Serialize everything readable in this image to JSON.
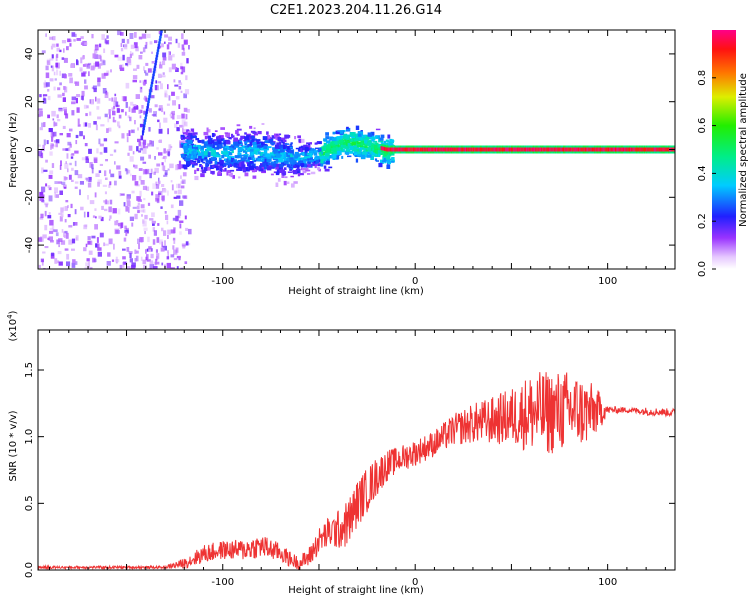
{
  "figure_title": "C2E1.2023.204.11.26.G14",
  "chart_data": [
    {
      "type": "heatmap",
      "xlabel": "Height of straight line (km)",
      "ylabel": "Frequency (Hz)",
      "xlim": [
        -196,
        135
      ],
      "ylim": [
        -50,
        50
      ],
      "xticks": [
        -100,
        0,
        100
      ],
      "yticks": [
        -40,
        -20,
        0,
        20,
        40
      ],
      "grid": false,
      "colorbar": {
        "label": "Normalized spectral amplitude",
        "range": [
          0.0,
          1.0
        ],
        "ticks": [
          0.0,
          0.2,
          0.4,
          0.6,
          0.8
        ]
      },
      "ridge": {
        "x": [
          -120,
          -110,
          -100,
          -90,
          -80,
          -70,
          -60,
          -50,
          -40,
          -35,
          -30,
          -25,
          -20,
          -15,
          0,
          50,
          100,
          135
        ],
        "y": [
          0,
          0,
          -1,
          0,
          -1,
          -2,
          -3,
          -1,
          3,
          4,
          3,
          2,
          1,
          0,
          0,
          0,
          0,
          0
        ]
      }
    },
    {
      "type": "line",
      "xlabel": "Height of straight line (km)",
      "ylabel": "SNR (10 * v/v)",
      "y_multiplier": "(x10^4)",
      "xlim": [
        -196,
        135
      ],
      "ylim": [
        0,
        1.8
      ],
      "xticks": [
        -100,
        0,
        100
      ],
      "yticks": [
        0.0,
        0.5,
        1.0,
        1.5
      ],
      "grid": false,
      "series": [
        {
          "color": "#ee3333",
          "x": [
            -196,
            -130,
            -120,
            -110,
            -100,
            -90,
            -80,
            -70,
            -65,
            -60,
            -55,
            -50,
            -45,
            -40,
            -35,
            -30,
            -25,
            -20,
            -15,
            -10,
            -5,
            0,
            10,
            20,
            30,
            40,
            50,
            60,
            70,
            80,
            90,
            97,
            100,
            110,
            120,
            135
          ],
          "y": [
            0.02,
            0.02,
            0.05,
            0.12,
            0.15,
            0.15,
            0.18,
            0.13,
            0.08,
            0.05,
            0.1,
            0.22,
            0.28,
            0.3,
            0.35,
            0.5,
            0.6,
            0.7,
            0.78,
            0.82,
            0.85,
            0.88,
            0.95,
            1.05,
            1.1,
            1.12,
            1.15,
            1.18,
            1.18,
            1.2,
            1.18,
            1.2,
            1.2,
            1.2,
            1.19,
            1.18
          ],
          "noise_amplitude": [
            0.01,
            0.01,
            0.04,
            0.07,
            0.07,
            0.08,
            0.09,
            0.07,
            0.06,
            0.05,
            0.08,
            0.1,
            0.12,
            0.15,
            0.18,
            0.18,
            0.17,
            0.15,
            0.12,
            0.1,
            0.1,
            0.1,
            0.1,
            0.12,
            0.15,
            0.18,
            0.22,
            0.3,
            0.32,
            0.3,
            0.25,
            0.12,
            0.03,
            0.02,
            0.03,
            0.03
          ]
        }
      ]
    }
  ]
}
